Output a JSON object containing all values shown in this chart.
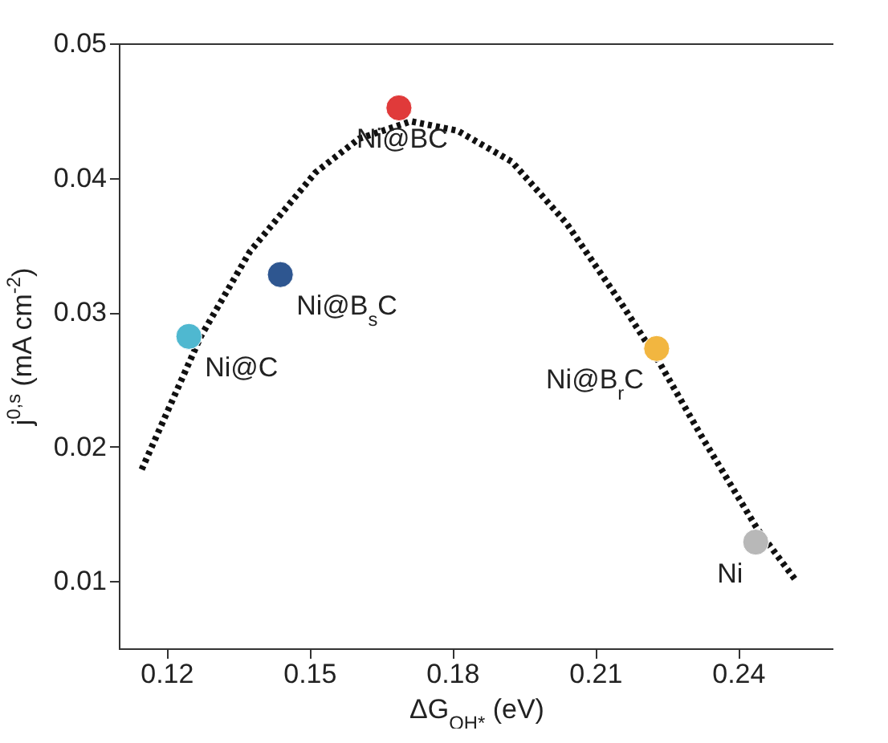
{
  "chart_data": {
    "type": "scatter",
    "xlabel": "ΔG$_{OH*}$ (eV)",
    "ylabel": "j$^{0,s}$ (mA cm$^{-2}$)",
    "xlim": [
      0.11,
      0.26
    ],
    "xticks": [
      0.12,
      0.15,
      0.18,
      0.21,
      0.24
    ],
    "ylim": [
      0.005,
      0.05
    ],
    "yticks": [
      0.01,
      0.02,
      0.03,
      0.04,
      0.05
    ],
    "marker": "circle",
    "series": [
      {
        "type": "line",
        "color": "#111111",
        "line_style": "dotted",
        "marker": "none",
        "x": [
          0.1148,
          0.1272,
          0.1375,
          0.1513,
          0.1604,
          0.1713,
          0.1811,
          0.1925,
          0.204,
          0.2154,
          0.2234,
          0.2326,
          0.244,
          0.252
        ],
        "values": [
          0.0183,
          0.0282,
          0.0345,
          0.0404,
          0.0429,
          0.0442,
          0.0435,
          0.0412,
          0.0366,
          0.0307,
          0.0263,
          0.0206,
          0.0139,
          0.0101
        ]
      },
      {
        "name": "Ni@C",
        "color": "#4fb8d0",
        "x": [
          0.1247
        ],
        "values": [
          0.0282
        ]
      },
      {
        "name": "Ni@B$_{s}$C",
        "color": "#2e5690",
        "x": [
          0.1439
        ],
        "values": [
          0.0328
        ]
      },
      {
        "name": "Ni@BC",
        "color": "#e03a3a",
        "x": [
          0.1688
        ],
        "values": [
          0.0452
        ]
      },
      {
        "name": "Ni@B$_{r}$C",
        "color": "#f2b640",
        "x": [
          0.2229
        ],
        "values": [
          0.0273
        ]
      },
      {
        "name": "Ni",
        "color": "#b8b8b8",
        "x": [
          0.2437
        ],
        "values": [
          0.0129
        ]
      }
    ]
  }
}
